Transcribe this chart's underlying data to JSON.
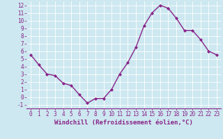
{
  "x": [
    0,
    1,
    2,
    3,
    4,
    5,
    6,
    7,
    8,
    9,
    10,
    11,
    12,
    13,
    14,
    15,
    16,
    17,
    18,
    19,
    20,
    21,
    22,
    23
  ],
  "y": [
    5.5,
    4.2,
    3.0,
    2.8,
    1.8,
    1.5,
    0.3,
    -0.8,
    -0.2,
    -0.2,
    1.0,
    3.0,
    4.5,
    6.5,
    9.3,
    11.0,
    12.0,
    11.6,
    10.3,
    8.7,
    8.7,
    7.5,
    6.0,
    5.5
  ],
  "line_color": "#882288",
  "marker": "D",
  "marker_size": 2.0,
  "linewidth": 1.0,
  "xlabel": "Windchill (Refroidissement éolien,°C)",
  "xlabel_fontsize": 6.5,
  "bg_color": "#cde8f0",
  "grid_color": "#b8d8e8",
  "tick_color": "#882288",
  "tick_fontsize": 5.5,
  "xlim": [
    -0.5,
    23.5
  ],
  "ylim": [
    -1.5,
    12.5
  ],
  "yticks": [
    -1,
    0,
    1,
    2,
    3,
    4,
    5,
    6,
    7,
    8,
    9,
    10,
    11,
    12
  ],
  "xticks": [
    0,
    1,
    2,
    3,
    4,
    5,
    6,
    7,
    8,
    9,
    10,
    11,
    12,
    13,
    14,
    15,
    16,
    17,
    18,
    19,
    20,
    21,
    22,
    23
  ]
}
